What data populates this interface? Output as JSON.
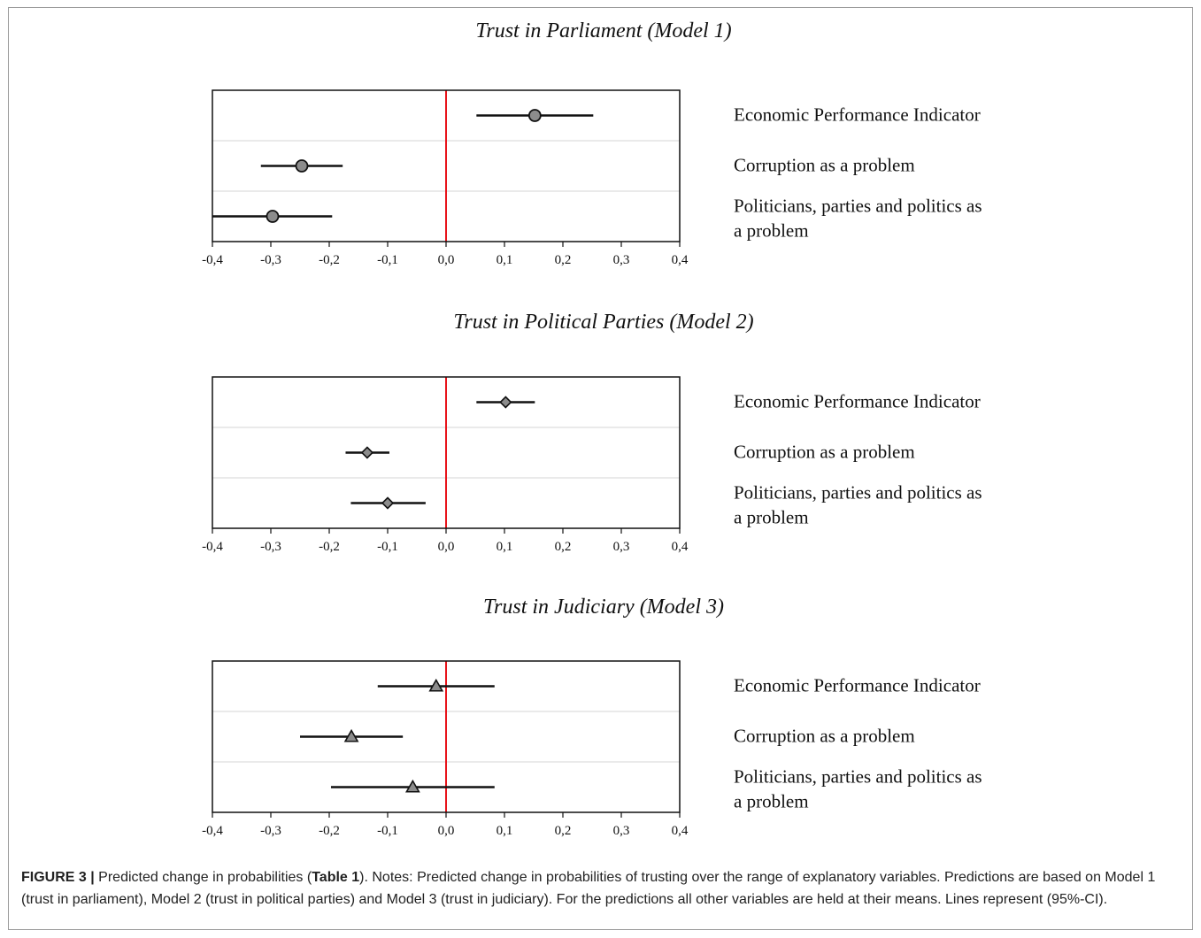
{
  "chart_data": [
    {
      "type": "scatter",
      "title": "Trust in Parliament (Model 1)",
      "marker": "circle",
      "xlim": [
        -0.4,
        0.4
      ],
      "xticks": [
        "-0,4",
        "-0,3",
        "-0,2",
        "-0,1",
        "0,0",
        "0,1",
        "0,2",
        "0,3",
        "0,4"
      ],
      "reference_line": 0.0,
      "reference_color": "#e8141b",
      "grid": true,
      "categories": [
        "Economic Performance Indicator",
        "Corruption as a problem",
        "Politicians, parties and politics as a problem"
      ],
      "estimates": [
        0.152,
        -0.247,
        -0.297
      ],
      "ci_low": [
        0.052,
        -0.317,
        -0.4
      ],
      "ci_high": [
        0.252,
        -0.177,
        -0.195
      ]
    },
    {
      "type": "scatter",
      "title": "Trust in Political Parties (Model 2)",
      "marker": "diamond",
      "xlim": [
        -0.4,
        0.4
      ],
      "xticks": [
        "-0,4",
        "-0,3",
        "-0,2",
        "-0,1",
        "0,0",
        "0,1",
        "0,2",
        "0,3",
        "0,4"
      ],
      "reference_line": 0.0,
      "reference_color": "#e8141b",
      "grid": true,
      "categories": [
        "Economic Performance Indicator",
        "Corruption as a problem",
        "Politicians, parties and politics as a problem"
      ],
      "estimates": [
        0.102,
        -0.135,
        -0.1
      ],
      "ci_low": [
        0.052,
        -0.172,
        -0.163
      ],
      "ci_high": [
        0.152,
        -0.097,
        -0.035
      ]
    },
    {
      "type": "scatter",
      "title": "Trust in Judiciary (Model 3)",
      "marker": "triangle",
      "xlim": [
        -0.4,
        0.4
      ],
      "xticks": [
        "-0,4",
        "-0,3",
        "-0,2",
        "-0,1",
        "0,0",
        "0,1",
        "0,2",
        "0,3",
        "0,4"
      ],
      "reference_line": 0.0,
      "reference_color": "#e8141b",
      "grid": true,
      "categories": [
        "Economic Performance Indicator",
        "Corruption as a problem",
        "Politicians, parties and politics as a problem"
      ],
      "estimates": [
        -0.017,
        -0.162,
        -0.057
      ],
      "ci_low": [
        -0.117,
        -0.25,
        -0.197
      ],
      "ci_high": [
        0.083,
        -0.074,
        0.083
      ]
    }
  ],
  "caption": {
    "figure_label": "FIGURE 3 |",
    "part1": " Predicted change in probabilities (",
    "table_ref": "Table 1",
    "part2": "). Notes: Predicted change in probabilities of trusting over the range of explanatory variables. Predictions are based on Model 1 (trust in parliament), Model 2 (trust in political parties) and Model 3 (trust in judiciary). For the predictions all other variables are held at their means. Lines represent (95%-CI)."
  }
}
